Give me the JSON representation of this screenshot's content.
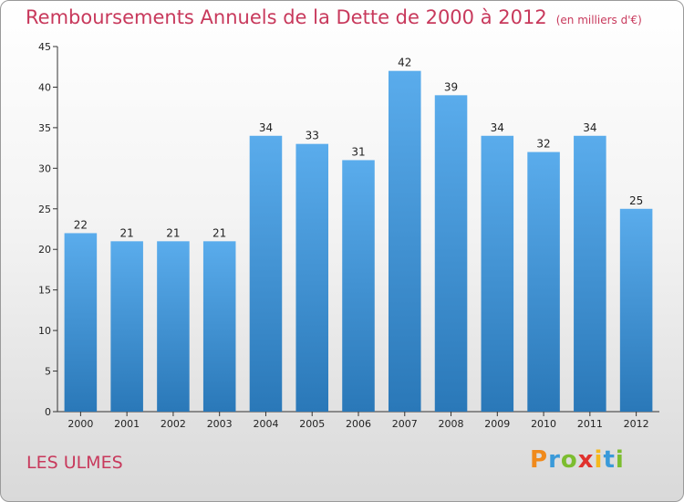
{
  "chart_data": {
    "type": "bar",
    "title": "Remboursements Annuels de la Dette de 2000 à 2012",
    "unit": "(en milliers d'€)",
    "categories": [
      "2000",
      "2001",
      "2002",
      "2003",
      "2004",
      "2005",
      "2006",
      "2007",
      "2008",
      "2009",
      "2010",
      "2011",
      "2012"
    ],
    "values": [
      22,
      21,
      21,
      21,
      34,
      33,
      31,
      42,
      39,
      34,
      32,
      34,
      25
    ],
    "ylim": [
      0,
      45
    ],
    "yticks": [
      0,
      5,
      10,
      15,
      20,
      25,
      30,
      35,
      40,
      45
    ],
    "grid": false,
    "bar_color_top": "#5aacec",
    "bar_color_bottom": "#2a78b8"
  },
  "footer": {
    "commune": "LES ULMES",
    "brand": [
      "P",
      "r",
      "o",
      "x",
      "i",
      "t",
      "i"
    ]
  }
}
